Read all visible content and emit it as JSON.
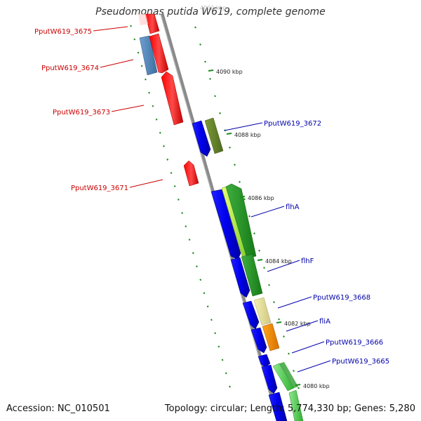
{
  "title": "Pseudomonas putida W619, complete genome",
  "accession": "Accession: NC_010501",
  "summary": "Topology: circular; Length: 5,774,330 bp; Genes: 5,280",
  "scale_labels": [
    {
      "text": "4090 kbp",
      "kbp": 4090
    },
    {
      "text": "4088 kbp",
      "kbp": 4088
    },
    {
      "text": "4086 kbp",
      "kbp": 4086
    },
    {
      "text": "4084 kbp",
      "kbp": 4084
    },
    {
      "text": "4082 kbp",
      "kbp": 4082
    },
    {
      "text": "4080 kbp",
      "kbp": 4080
    }
  ],
  "reverse_strand_labels": [
    "PputW619_3675",
    "PputW619_3674",
    "PputW619_3673",
    "PputW619_3671"
  ],
  "forward_strand_labels": [
    "PputW619_3672",
    "flhA",
    "flhF",
    "PputW619_3668",
    "fliA",
    "PputW619_3666",
    "PputW619_3665"
  ],
  "colors": {
    "backbone": "#8a8a8a",
    "reverse_gene": "#ff0000",
    "forward_gene": "#0000ff",
    "reverse_label": "#cc0000",
    "forward_label": "#0000aa",
    "tick": "#1f8a1f"
  }
}
